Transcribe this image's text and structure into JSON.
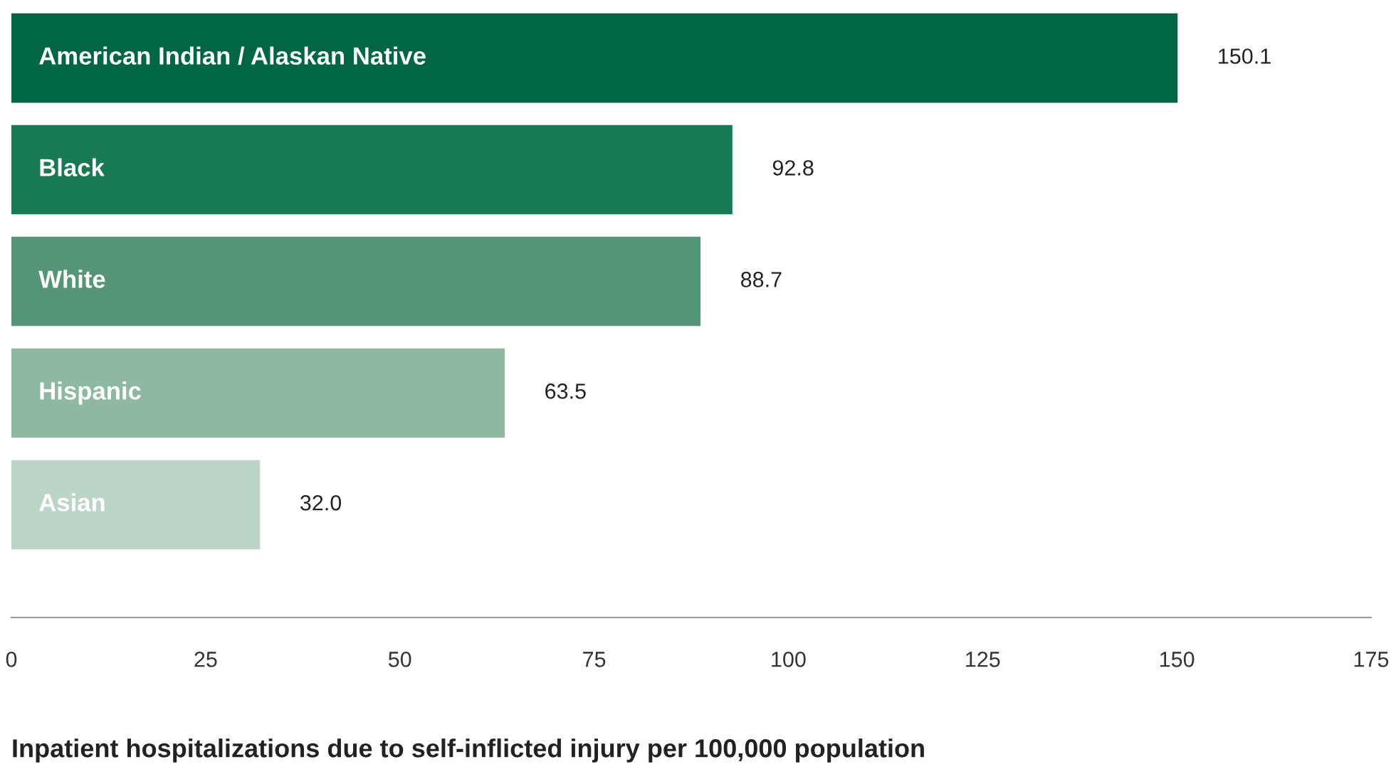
{
  "chart_data": {
    "type": "bar",
    "orientation": "horizontal",
    "xlabel": "Inpatient hospitalizations due to self-inflicted injury per 100,000 population",
    "categories": [
      "American Indian / Alaskan Native",
      "Black",
      "White",
      "Hispanic",
      "Asian"
    ],
    "values": [
      150.1,
      92.8,
      88.7,
      63.5,
      32.0
    ],
    "value_labels": [
      "150.1",
      "92.8",
      "88.7",
      "63.5",
      "32.0"
    ],
    "colors": [
      "#006643",
      "#177a55",
      "#559579",
      "#8fb8a2",
      "#bcd5c9"
    ],
    "xlim": [
      0,
      175
    ],
    "xticks": [
      0,
      25,
      50,
      75,
      100,
      125,
      150,
      175
    ],
    "grid": false,
    "legend": false
  }
}
